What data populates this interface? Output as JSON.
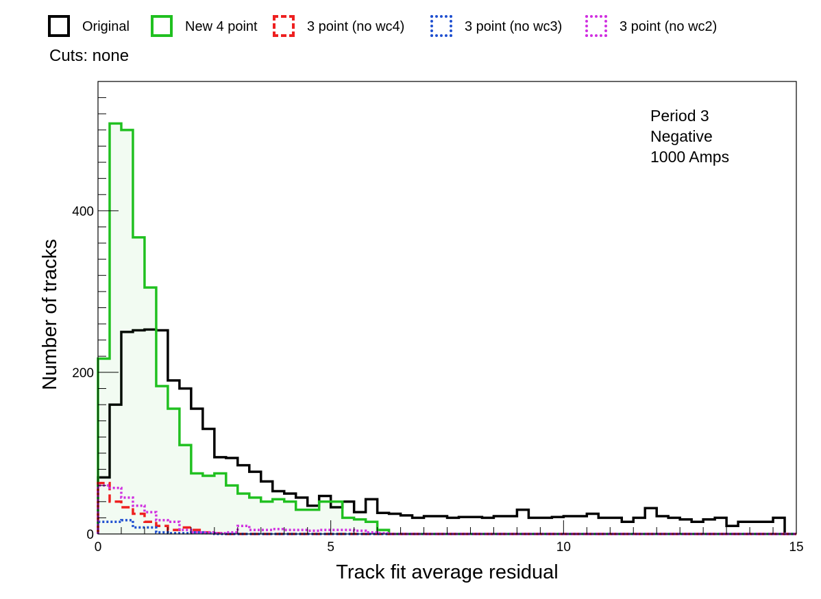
{
  "legend": [
    {
      "label": "Original",
      "color": "#000000",
      "style": "solid"
    },
    {
      "label": "New 4 point",
      "color": "#20c020",
      "style": "solid"
    },
    {
      "label": "3 point (no wc4)",
      "color": "#ee2020",
      "style": "dashed"
    },
    {
      "label": "3 point (no wc3)",
      "color": "#2050d0",
      "style": "dotted"
    },
    {
      "label": "3 point (no wc2)",
      "color": "#d030e0",
      "style": "dotted"
    }
  ],
  "cuts": "Cuts: none",
  "annotation": [
    "Period 3",
    "Negative",
    "1000 Amps"
  ],
  "chart_data": {
    "type": "line",
    "subtype": "step-histogram",
    "xlabel": "Track fit average residual",
    "ylabel": "Number of tracks",
    "xlim": [
      0,
      15
    ],
    "ylim": [
      0,
      560
    ],
    "x_ticks": [
      0,
      5,
      10,
      15
    ],
    "y_ticks": [
      0,
      200,
      400
    ],
    "bin_width": 0.25,
    "series": [
      {
        "name": "Original",
        "color": "#000000",
        "style": "solid",
        "filled": false,
        "values": [
          70,
          160,
          250,
          252,
          253,
          252,
          190,
          180,
          155,
          130,
          95,
          94,
          85,
          77,
          65,
          53,
          50,
          45,
          35,
          47,
          33,
          40,
          27,
          43,
          26,
          25,
          23,
          20,
          22,
          22,
          20,
          21,
          21,
          20,
          22,
          22,
          30,
          20,
          20,
          21,
          22,
          22,
          25,
          20,
          20,
          15,
          20,
          32,
          22,
          20,
          18,
          15,
          18,
          20,
          10,
          15,
          15,
          15,
          20,
          0
        ]
      },
      {
        "name": "New 4 point",
        "color": "#20c020",
        "style": "solid",
        "filled": true,
        "fill": "rgba(32,192,32,0.06)",
        "values": [
          217,
          508,
          500,
          367,
          305,
          183,
          155,
          110,
          75,
          72,
          75,
          60,
          50,
          45,
          40,
          43,
          40,
          30,
          30,
          40,
          40,
          20,
          18,
          15,
          5,
          0
        ]
      },
      {
        "name": "3 point (no wc4)",
        "color": "#ee2020",
        "style": "dashed",
        "filled": false,
        "values": [
          63,
          40,
          33,
          25,
          15,
          10,
          5,
          8,
          5,
          2,
          1,
          0
        ]
      },
      {
        "name": "3 point (no wc3)",
        "color": "#2050d0",
        "style": "dotted",
        "filled": false,
        "values": [
          15,
          15,
          17,
          8,
          8,
          2,
          1,
          1,
          2,
          1,
          0
        ]
      },
      {
        "name": "3 point (no wc2)",
        "color": "#d030e0",
        "style": "dotted",
        "filled": false,
        "values": [
          60,
          57,
          45,
          35,
          27,
          17,
          15,
          5,
          2,
          2,
          1,
          2,
          10,
          5,
          5,
          6,
          5,
          5,
          4,
          5,
          5,
          5,
          4,
          2,
          1,
          0
        ]
      }
    ]
  }
}
